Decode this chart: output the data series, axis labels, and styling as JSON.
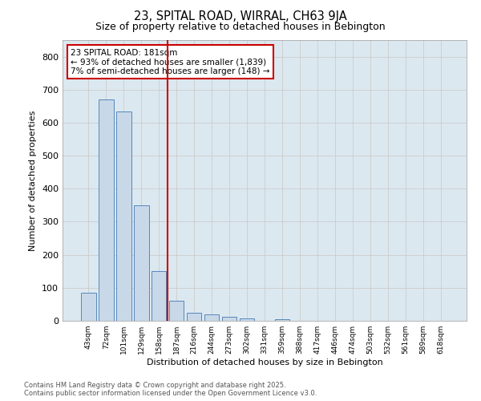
{
  "title1": "23, SPITAL ROAD, WIRRAL, CH63 9JA",
  "title2": "Size of property relative to detached houses in Bebington",
  "xlabel": "Distribution of detached houses by size in Bebington",
  "ylabel": "Number of detached properties",
  "categories": [
    "43sqm",
    "72sqm",
    "101sqm",
    "129sqm",
    "158sqm",
    "187sqm",
    "216sqm",
    "244sqm",
    "273sqm",
    "302sqm",
    "331sqm",
    "359sqm",
    "388sqm",
    "417sqm",
    "446sqm",
    "474sqm",
    "503sqm",
    "532sqm",
    "561sqm",
    "589sqm",
    "618sqm"
  ],
  "values": [
    85,
    670,
    635,
    350,
    150,
    60,
    25,
    20,
    13,
    7,
    0,
    5,
    0,
    0,
    0,
    0,
    0,
    0,
    0,
    0,
    0
  ],
  "bar_color": "#c8d8e8",
  "bar_edge_color": "#5588bb",
  "vline_x": 4.5,
  "marker_label": "23 SPITAL ROAD: 181sqm",
  "annotation_line1": "← 93% of detached houses are smaller (1,839)",
  "annotation_line2": "7% of semi-detached houses are larger (148) →",
  "marker_color": "#cc0000",
  "ylim": [
    0,
    850
  ],
  "yticks": [
    0,
    100,
    200,
    300,
    400,
    500,
    600,
    700,
    800
  ],
  "grid_color": "#cccccc",
  "background_color": "#dce8f0",
  "footer1": "Contains HM Land Registry data © Crown copyright and database right 2025.",
  "footer2": "Contains public sector information licensed under the Open Government Licence v3.0."
}
